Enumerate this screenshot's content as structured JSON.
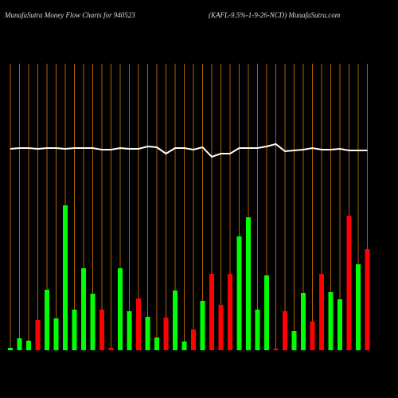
{
  "chart_data": {
    "type": "bar",
    "title": "MunafaSutra  Money Flow  Charts for 940523",
    "subtitle": "(KAFL-9.5%-1-9-26-NCD) MunafaSutra.com",
    "categories": [
      null,
      null,
      null,
      null,
      null,
      null,
      null,
      null,
      null,
      null,
      null,
      null,
      null,
      null,
      null,
      null,
      null,
      null,
      null,
      null,
      null,
      null,
      null,
      null,
      null,
      null,
      null,
      null,
      null,
      null,
      null,
      null,
      null,
      null,
      null,
      null,
      null,
      null,
      null,
      null
    ],
    "values": [
      3,
      15,
      12,
      38,
      76,
      40,
      182,
      51,
      103,
      71,
      51,
      3,
      103,
      49,
      65,
      42,
      16,
      41,
      75,
      11,
      26,
      62,
      96,
      57,
      96,
      143,
      167,
      51,
      94,
      2,
      49,
      24,
      72,
      36,
      96,
      73,
      64,
      169,
      108,
      127
    ],
    "colors": [
      "#00ff00",
      "#00ff00",
      "#00ff00",
      "#ff0000",
      "#00ff00",
      "#00ff00",
      "#00ff00",
      "#00ff00",
      "#00ff00",
      "#00ff00",
      "#ff0000",
      "#ff0000",
      "#00ff00",
      "#00ff00",
      "#ff0000",
      "#00ff00",
      "#00ff00",
      "#ff0000",
      "#00ff00",
      "#00ff00",
      "#ff0000",
      "#00ff00",
      "#ff0000",
      "#ff0000",
      "#ff0000",
      "#00ff00",
      "#00ff00",
      "#00ff00",
      "#00ff00",
      "#ff0000",
      "#ff0000",
      "#00ff00",
      "#00ff00",
      "#ff0000",
      "#ff0000",
      "#00ff00",
      "#00ff00",
      "#ff0000",
      "#00ff00",
      "#ff0000"
    ],
    "line": {
      "color": "#ffffff",
      "values": [
        253,
        254,
        254,
        253,
        254,
        254,
        253,
        254,
        254,
        254,
        252,
        252,
        254,
        253,
        253,
        256,
        255,
        247,
        254,
        254,
        252,
        255,
        243,
        247,
        247,
        254,
        254,
        254,
        256,
        259,
        250,
        251,
        252,
        254,
        252,
        252,
        253,
        251,
        251,
        251
      ]
    },
    "grid_color": "#b06000",
    "ylim": [
      0,
      360
    ]
  }
}
